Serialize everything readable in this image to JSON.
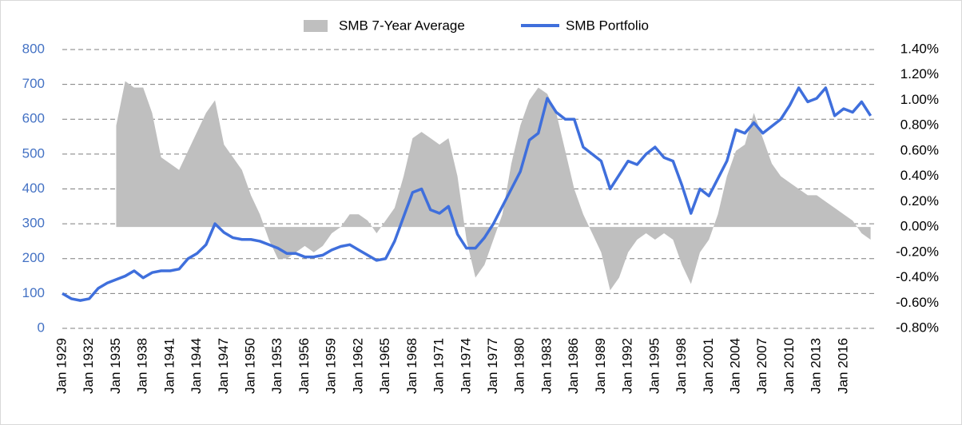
{
  "chart_data": {
    "type": "line",
    "categories": [
      "Jan 1929",
      null,
      null,
      "Jan 1932",
      null,
      null,
      "Jan 1935",
      null,
      null,
      "Jan 1938",
      null,
      null,
      "Jan 1941",
      null,
      null,
      "Jan 1944",
      null,
      null,
      "Jan 1947",
      null,
      null,
      "Jan 1950",
      null,
      null,
      "Jan 1953",
      null,
      null,
      "Jan 1956",
      null,
      null,
      "Jan 1959",
      null,
      null,
      "Jan 1962",
      null,
      null,
      "Jan 1965",
      null,
      null,
      "Jan 1968",
      null,
      null,
      "Jan 1971",
      null,
      null,
      "Jan 1974",
      null,
      null,
      "Jan 1977",
      null,
      null,
      "Jan 1980",
      null,
      null,
      "Jan 1983",
      null,
      null,
      "Jan 1986",
      null,
      null,
      "Jan 1989",
      null,
      null,
      "Jan 1992",
      null,
      null,
      "Jan 1995",
      null,
      null,
      "Jan 1998",
      null,
      null,
      "Jan 2001",
      null,
      null,
      "Jan 2004",
      null,
      null,
      "Jan 2007",
      null,
      null,
      "Jan 2010",
      null,
      null,
      "Jan 2013",
      null,
      null,
      "Jan 2016",
      null,
      null,
      null
    ],
    "series": [
      {
        "name": "SMB 7-Year Average",
        "type": "area",
        "axis": "y2",
        "color": "#bfbfbf",
        "values": [
          null,
          null,
          null,
          null,
          null,
          null,
          0.8,
          1.15,
          1.1,
          1.1,
          0.9,
          0.55,
          0.5,
          0.45,
          0.6,
          0.75,
          0.9,
          1.0,
          0.65,
          0.55,
          0.45,
          0.25,
          0.1,
          -0.1,
          -0.25,
          -0.25,
          -0.2,
          -0.15,
          -0.2,
          -0.15,
          -0.05,
          0.0,
          0.1,
          0.1,
          0.05,
          -0.05,
          0.05,
          0.15,
          0.4,
          0.7,
          0.75,
          0.7,
          0.65,
          0.7,
          0.4,
          -0.1,
          -0.4,
          -0.3,
          -0.1,
          0.1,
          0.5,
          0.8,
          1.0,
          1.1,
          1.05,
          0.9,
          0.6,
          0.3,
          0.1,
          -0.05,
          -0.2,
          -0.5,
          -0.4,
          -0.2,
          -0.1,
          -0.05,
          -0.1,
          -0.05,
          -0.1,
          -0.3,
          -0.45,
          -0.2,
          -0.1,
          0.1,
          0.4,
          0.6,
          0.65,
          0.9,
          0.7,
          0.5,
          0.4,
          0.35,
          0.3,
          0.25,
          0.25,
          0.2,
          0.15,
          0.1,
          0.05,
          -0.05,
          -0.1
        ]
      },
      {
        "name": "SMB Portfolio",
        "type": "line",
        "color": "#3f6fdc",
        "values": [
          100,
          85,
          80,
          85,
          115,
          130,
          140,
          150,
          165,
          145,
          160,
          165,
          165,
          170,
          200,
          215,
          240,
          300,
          275,
          260,
          255,
          255,
          250,
          240,
          230,
          215,
          215,
          205,
          205,
          210,
          225,
          235,
          240,
          225,
          210,
          195,
          200,
          250,
          320,
          390,
          400,
          340,
          330,
          350,
          270,
          230,
          230,
          260,
          300,
          350,
          400,
          450,
          540,
          560,
          660,
          620,
          600,
          600,
          520,
          500,
          480,
          400,
          440,
          480,
          470,
          500,
          520,
          490,
          480,
          410,
          330,
          400,
          380,
          430,
          480,
          570,
          560,
          590,
          560,
          580,
          600,
          640,
          690,
          650,
          660,
          690,
          610,
          630,
          620,
          650,
          610
        ]
      }
    ],
    "ylim": [
      0,
      800
    ],
    "yticks": [
      0,
      100,
      200,
      300,
      400,
      500,
      600,
      700,
      800
    ],
    "y2lim": [
      -0.8,
      1.4
    ],
    "y2ticks": [
      {
        "value": -0.8,
        "label": "-0.80%"
      },
      {
        "value": -0.6,
        "label": "-0.60%"
      },
      {
        "value": -0.4,
        "label": "-0.40%"
      },
      {
        "value": -0.2,
        "label": "-0.20%"
      },
      {
        "value": 0,
        "label": "0.00%"
      },
      {
        "value": 0.2,
        "label": "0.20%"
      },
      {
        "value": 0.4,
        "label": "0.40%"
      },
      {
        "value": 0.6,
        "label": "0.60%"
      },
      {
        "value": 0.8,
        "label": "0.80%"
      },
      {
        "value": 1.0,
        "label": "1.00%"
      },
      {
        "value": 1.2,
        "label": "1.20%"
      },
      {
        "value": 1.4,
        "label": "1.40%"
      }
    ],
    "grid": true,
    "legend": "top"
  }
}
